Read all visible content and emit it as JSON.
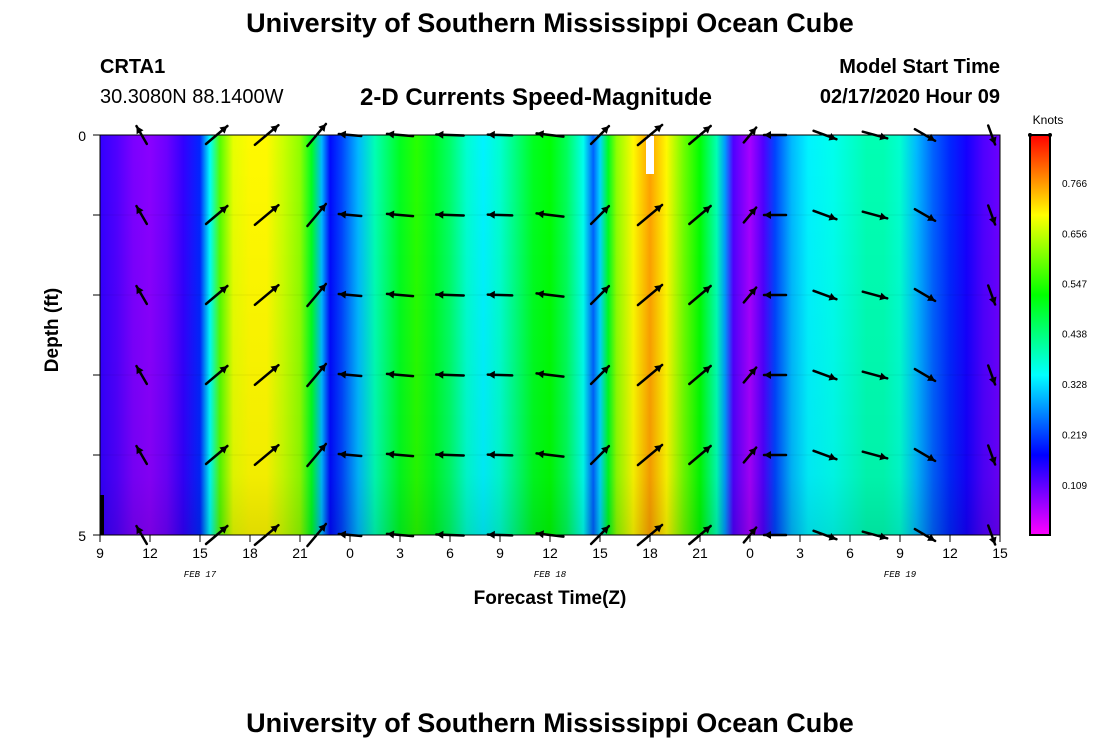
{
  "header": {
    "title_top": "University of Southern Mississippi Ocean Cube",
    "title_bottom": "University of Southern Mississippi Ocean Cube",
    "station_name": "CRTA1",
    "station_coords": "30.3080N 88.1400W",
    "chart_title": "2-D Currents Speed-Magnitude",
    "model_start_label": "Model Start Time",
    "model_start_value": "02/17/2020 Hour 09"
  },
  "chart_data": {
    "type": "heatmap",
    "title": "2-D Currents Speed-Magnitude",
    "xlabel": "Forecast Time(Z)",
    "ylabel": "Depth (ft)",
    "ylim": [
      0,
      5
    ],
    "y_ticks": [
      "0",
      "5"
    ],
    "x_tick_labels": [
      "9",
      "12",
      "15",
      "18",
      "21",
      "0",
      "3",
      "6",
      "9",
      "12",
      "15",
      "18",
      "21",
      "0",
      "3",
      "6",
      "9",
      "12",
      "15"
    ],
    "date_labels": [
      {
        "label": "FEB 17",
        "hour_index": 6
      },
      {
        "label": "FEB 18",
        "hour_index": 27
      },
      {
        "label": "FEB 19",
        "hour_index": 48
      }
    ],
    "hours_span": 54,
    "colorbar": {
      "title": "Knots",
      "ticks": [
        "0.766",
        "0.656",
        "0.547",
        "0.438",
        "0.328",
        "0.219",
        "0.109"
      ],
      "range": [
        0.0,
        0.87
      ]
    },
    "speed_profile_knots": [
      {
        "h": 0,
        "v": 0.14
      },
      {
        "h": 1,
        "v": 0.12
      },
      {
        "h": 2,
        "v": 0.09
      },
      {
        "h": 3,
        "v": 0.08
      },
      {
        "h": 4,
        "v": 0.1
      },
      {
        "h": 5,
        "v": 0.14
      },
      {
        "h": 6,
        "v": 0.2
      },
      {
        "h": 6.6,
        "v": 0.35
      },
      {
        "h": 7.2,
        "v": 0.58
      },
      {
        "h": 8,
        "v": 0.68
      },
      {
        "h": 9,
        "v": 0.7
      },
      {
        "h": 10,
        "v": 0.7
      },
      {
        "h": 11,
        "v": 0.66
      },
      {
        "h": 12,
        "v": 0.62
      },
      {
        "h": 12.7,
        "v": 0.5
      },
      {
        "h": 13.3,
        "v": 0.3
      },
      {
        "h": 13.8,
        "v": 0.18
      },
      {
        "h": 14.5,
        "v": 0.22
      },
      {
        "h": 15.5,
        "v": 0.3
      },
      {
        "h": 16.5,
        "v": 0.4
      },
      {
        "h": 18,
        "v": 0.5
      },
      {
        "h": 19,
        "v": 0.55
      },
      {
        "h": 20,
        "v": 0.5
      },
      {
        "h": 21,
        "v": 0.45
      },
      {
        "h": 22,
        "v": 0.38
      },
      {
        "h": 23,
        "v": 0.34
      },
      {
        "h": 24,
        "v": 0.38
      },
      {
        "h": 25,
        "v": 0.44
      },
      {
        "h": 26,
        "v": 0.5
      },
      {
        "h": 27,
        "v": 0.52
      },
      {
        "h": 28,
        "v": 0.46
      },
      {
        "h": 29,
        "v": 0.36
      },
      {
        "h": 29.6,
        "v": 0.24
      },
      {
        "h": 30,
        "v": 0.32
      },
      {
        "h": 30.5,
        "v": 0.5
      },
      {
        "h": 31,
        "v": 0.62
      },
      {
        "h": 32,
        "v": 0.7
      },
      {
        "h": 33,
        "v": 0.76
      },
      {
        "h": 34,
        "v": 0.7
      },
      {
        "h": 35,
        "v": 0.6
      },
      {
        "h": 36,
        "v": 0.52
      },
      {
        "h": 37,
        "v": 0.4
      },
      {
        "h": 37.5,
        "v": 0.28
      },
      {
        "h": 38,
        "v": 0.12
      },
      {
        "h": 39,
        "v": 0.06
      },
      {
        "h": 39.8,
        "v": 0.12
      },
      {
        "h": 40.5,
        "v": 0.22
      },
      {
        "h": 41.5,
        "v": 0.3
      },
      {
        "h": 42.5,
        "v": 0.34
      },
      {
        "h": 44,
        "v": 0.36
      },
      {
        "h": 45,
        "v": 0.38
      },
      {
        "h": 46,
        "v": 0.4
      },
      {
        "h": 47,
        "v": 0.4
      },
      {
        "h": 48,
        "v": 0.38
      },
      {
        "h": 49,
        "v": 0.3
      },
      {
        "h": 50,
        "v": 0.24
      },
      {
        "h": 51,
        "v": 0.2
      },
      {
        "h": 52,
        "v": 0.16
      },
      {
        "h": 53,
        "v": 0.12
      },
      {
        "h": 54,
        "v": 0.1
      }
    ],
    "arrow_depths_ft": [
      0,
      1,
      2,
      3,
      4,
      5
    ],
    "arrows": [
      {
        "h": 2.5,
        "dir_deg": 210,
        "speed": 0.14
      },
      {
        "h": 7.0,
        "dir_deg": 130,
        "speed": 0.55
      },
      {
        "h": 10.0,
        "dir_deg": 130,
        "speed": 0.7
      },
      {
        "h": 13.0,
        "dir_deg": 140,
        "speed": 0.6
      },
      {
        "h": 15.0,
        "dir_deg": 265,
        "speed": 0.25
      },
      {
        "h": 18.0,
        "dir_deg": 265,
        "speed": 0.45
      },
      {
        "h": 21.0,
        "dir_deg": 268,
        "speed": 0.52
      },
      {
        "h": 24.0,
        "dir_deg": 268,
        "speed": 0.36
      },
      {
        "h": 27.0,
        "dir_deg": 263,
        "speed": 0.5
      },
      {
        "h": 30.0,
        "dir_deg": 135,
        "speed": 0.4
      },
      {
        "h": 33.0,
        "dir_deg": 130,
        "speed": 0.75
      },
      {
        "h": 36.0,
        "dir_deg": 130,
        "speed": 0.55
      },
      {
        "h": 39.0,
        "dir_deg": 140,
        "speed": 0.08
      },
      {
        "h": 40.5,
        "dir_deg": 270,
        "speed": 0.22
      },
      {
        "h": 43.5,
        "dir_deg": 70,
        "speed": 0.35
      },
      {
        "h": 46.5,
        "dir_deg": 75,
        "speed": 0.4
      },
      {
        "h": 49.5,
        "dir_deg": 60,
        "speed": 0.3
      },
      {
        "h": 53.5,
        "dir_deg": 20,
        "speed": 0.12
      }
    ]
  }
}
